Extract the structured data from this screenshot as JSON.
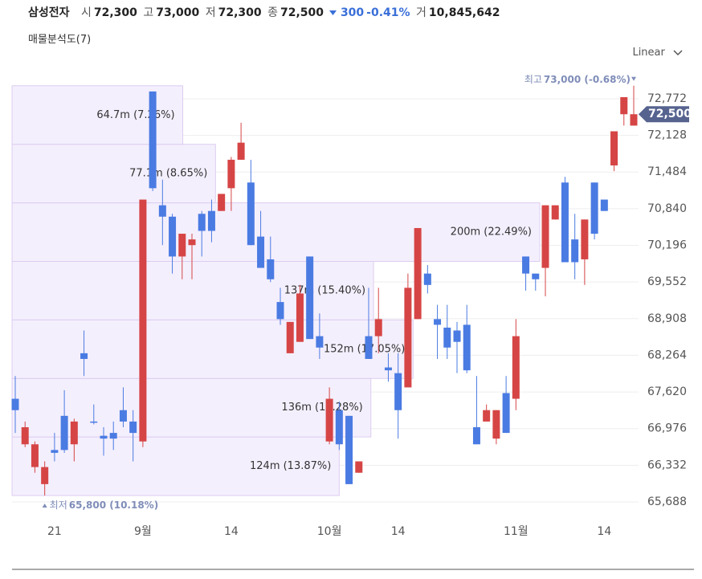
{
  "header": {
    "name": "삼성전자",
    "open_label": "시",
    "open": "72,300",
    "high_label": "고",
    "high": "73,000",
    "low_label": "저",
    "low": "72,300",
    "close_label": "종",
    "close": "72,500",
    "change": "300",
    "change_pct": "-0.41%",
    "volume_label": "거",
    "volume": "10,845,642",
    "indicator": "매물분석도(7)",
    "scale": "Linear"
  },
  "chart_data": {
    "type": "candlestick",
    "categories": [
      null,
      null,
      null,
      null,
      "21",
      null,
      null,
      null,
      null,
      null,
      null,
      null,
      null,
      "9월",
      null,
      null,
      null,
      null,
      null,
      null,
      null,
      null,
      "14",
      null,
      null,
      null,
      null,
      null,
      null,
      null,
      null,
      null,
      "10월",
      null,
      null,
      null,
      null,
      null,
      null,
      "14",
      null,
      null,
      null,
      null,
      null,
      null,
      null,
      null,
      null,
      null,
      null,
      "11월",
      null,
      null,
      null,
      null,
      null,
      null,
      null,
      null,
      "14",
      null,
      null,
      null
    ],
    "open": [
      67500,
      66700,
      66300,
      66000,
      66600,
      67200,
      66700,
      68300,
      67100,
      66850,
      66900,
      67300,
      67100,
      66750,
      72900,
      70900,
      70700,
      70000,
      70200,
      70750,
      70800,
      70800,
      71200,
      71700,
      71300,
      70350,
      69950,
      69200,
      68300,
      68500,
      70000,
      68600,
      66750,
      67300,
      67200,
      66200,
      68600,
      68600,
      68050,
      67950,
      67700,
      68900,
      69700,
      68900,
      68750,
      68700,
      68800,
      67000,
      67100,
      66800,
      67600,
      67500,
      70000,
      69700,
      69800,
      70650,
      71300,
      70300,
      69950,
      71300,
      71000,
      71600,
      72500,
      72300
    ],
    "high": [
      67900,
      67100,
      66750,
      66400,
      66900,
      67650,
      67150,
      68700,
      67400,
      67000,
      67100,
      67700,
      67300,
      71000,
      72900,
      71350,
      70750,
      70400,
      70400,
      70800,
      71000,
      71100,
      71750,
      72350,
      71700,
      70800,
      70350,
      69450,
      68850,
      69500,
      70000,
      69000,
      67700,
      67450,
      67200,
      66400,
      69450,
      69450,
      68300,
      68300,
      69700,
      70500,
      69850,
      69150,
      69150,
      68850,
      69150,
      67900,
      67400,
      67300,
      67900,
      68900,
      70000,
      69700,
      70900,
      70900,
      71400,
      70750,
      70650,
      71300,
      71000,
      72200,
      72800,
      73000
    ],
    "low": [
      66900,
      66650,
      66200,
      65800,
      66400,
      66550,
      66400,
      67900,
      67050,
      66500,
      66600,
      67000,
      66400,
      66650,
      71150,
      70200,
      69700,
      69600,
      69600,
      70000,
      70250,
      70800,
      70800,
      71700,
      70200,
      69800,
      69550,
      68800,
      68300,
      68500,
      68550,
      68200,
      66700,
      66600,
      66000,
      66200,
      68200,
      68300,
      67800,
      66800,
      67700,
      68900,
      69350,
      68200,
      68200,
      67950,
      67950,
      66700,
      67100,
      66700,
      66900,
      67300,
      69400,
      69400,
      69300,
      70650,
      69900,
      69600,
      69500,
      70300,
      70800,
      71500,
      72300,
      72300
    ],
    "close": [
      67300,
      67000,
      66700,
      66300,
      66550,
      66600,
      67100,
      68200,
      67100,
      66800,
      66800,
      67100,
      66900,
      71000,
      71200,
      70700,
      70000,
      70400,
      70300,
      70450,
      70450,
      71100,
      71700,
      72000,
      70200,
      69800,
      69600,
      68900,
      68850,
      69350,
      68550,
      68400,
      67500,
      66700,
      66000,
      66400,
      68200,
      68900,
      68000,
      67300,
      69450,
      70500,
      69500,
      68800,
      68400,
      68500,
      68000,
      66700,
      67300,
      67300,
      66900,
      68600,
      69700,
      69600,
      70900,
      70900,
      69900,
      69900,
      70650,
      70400,
      70800,
      72200,
      72800,
      72500
    ],
    "up_color": "#d64545",
    "down_color": "#4a7be2",
    "ylim": [
      65476,
      73096
    ],
    "yticks": [
      {
        "value": 65688,
        "label": "65,688"
      },
      {
        "value": 66332,
        "label": "66,332"
      },
      {
        "value": 66976,
        "label": "66,976"
      },
      {
        "value": 67620,
        "label": "67,620"
      },
      {
        "value": 68264,
        "label": "68,264"
      },
      {
        "value": 68908,
        "label": "68,908"
      },
      {
        "value": 69552,
        "label": "69,552"
      },
      {
        "value": 70196,
        "label": "70,196"
      },
      {
        "value": 70840,
        "label": "70,840"
      },
      {
        "value": 71484,
        "label": "71,484"
      },
      {
        "value": 72128,
        "label": "72,128"
      },
      {
        "value": 72772,
        "label": "72,772"
      }
    ],
    "grid": true,
    "volume_profile": [
      {
        "low": 65800,
        "high": 66829,
        "volume": 124,
        "percent": 13.87,
        "label": "124m (13.87%)"
      },
      {
        "low": 66829,
        "high": 67857,
        "volume": 136,
        "percent": 15.28,
        "label": "136m (15.28%)"
      },
      {
        "low": 67857,
        "high": 68886,
        "volume": 152,
        "percent": 17.05,
        "label": "152m (17.05%)"
      },
      {
        "low": 68886,
        "high": 69914,
        "volume": 137,
        "percent": 15.4,
        "label": "137m (15.40%)"
      },
      {
        "low": 69914,
        "high": 70943,
        "volume": 200,
        "percent": 22.49,
        "label": "200m (22.49%)"
      },
      {
        "low": 70943,
        "high": 71971,
        "volume": 77.1,
        "percent": 8.65,
        "label": "77.1m (8.65%)"
      },
      {
        "low": 71971,
        "high": 73000,
        "volume": 64.7,
        "percent": 7.26,
        "label": "64.7m (7.26%)"
      }
    ],
    "profile_color": "#f4effd",
    "max_note": {
      "prefix": "최고",
      "text": "73,000 (-0.68%)",
      "value": 73000,
      "index": 63
    },
    "min_note": {
      "prefix": "최저",
      "text": "65,800 (10.18%)",
      "value": 65800,
      "index": 3
    },
    "last_price": {
      "value": 72500,
      "label": "72,500"
    }
  }
}
